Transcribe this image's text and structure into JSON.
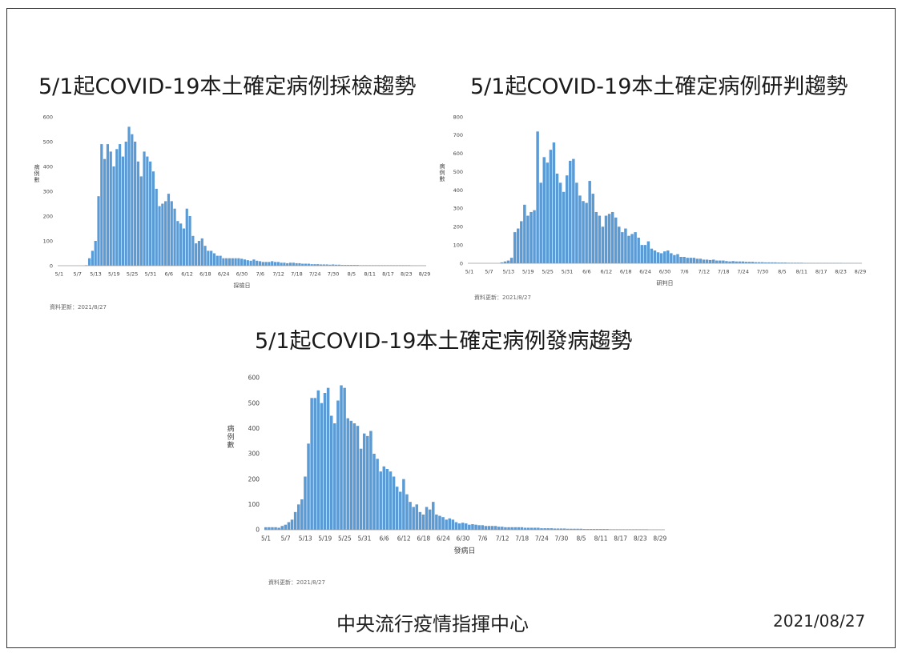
{
  "page": {
    "footer_center": "中央流行疫情指揮中心",
    "footer_date": "2021/08/27"
  },
  "colors": {
    "bar": "#5b9bd5",
    "axis": "#9a9a9a",
    "text": "#444444"
  },
  "chart_data": [
    {
      "type": "bar",
      "title": "5/1起COVID-19本土確定病例採檢趨勢",
      "xlabel": "採檢日",
      "ylabel": "病例數",
      "note": "資料更新：2021/8/27",
      "ylim": [
        0,
        600
      ],
      "yticks": [
        0,
        100,
        200,
        300,
        400,
        500,
        600
      ],
      "xtick_labels": [
        "5/1",
        "5/7",
        "5/13",
        "5/19",
        "5/25",
        "5/31",
        "6/6",
        "6/12",
        "6/18",
        "6/24",
        "6/30",
        "7/6",
        "7/12",
        "7/18",
        "7/24",
        "7/30",
        "8/5",
        "8/11",
        "8/17",
        "8/23",
        "8/29"
      ],
      "start_date": "5/1",
      "values": [
        0,
        0,
        0,
        0,
        0,
        0,
        0,
        0,
        0,
        2,
        30,
        60,
        100,
        280,
        490,
        430,
        490,
        460,
        400,
        470,
        490,
        440,
        500,
        560,
        530,
        500,
        420,
        360,
        460,
        440,
        420,
        380,
        310,
        240,
        250,
        260,
        290,
        260,
        230,
        180,
        170,
        150,
        230,
        200,
        120,
        90,
        100,
        110,
        80,
        60,
        60,
        50,
        40,
        40,
        30,
        30,
        30,
        30,
        30,
        30,
        28,
        25,
        22,
        20,
        25,
        20,
        18,
        15,
        15,
        15,
        18,
        15,
        15,
        12,
        12,
        10,
        12,
        12,
        10,
        10,
        8,
        8,
        8,
        6,
        6,
        6,
        5,
        5,
        5,
        4,
        5,
        4,
        4,
        3,
        3,
        3,
        3,
        3,
        3,
        2,
        2,
        2,
        2,
        2,
        2,
        2,
        2,
        2,
        2,
        2,
        2,
        2,
        2,
        2,
        2,
        2,
        1,
        1,
        1,
        1,
        1
      ]
    },
    {
      "type": "bar",
      "title": "5/1起COVID-19本土確定病例研判趨勢",
      "xlabel": "研判日",
      "ylabel": "病例數",
      "note": "資料更新：2021/8/27",
      "ylim": [
        0,
        800
      ],
      "yticks": [
        0,
        100,
        200,
        300,
        400,
        500,
        600,
        700,
        800
      ],
      "xtick_labels": [
        "5/1",
        "5/7",
        "5/13",
        "5/19",
        "5/25",
        "5/31",
        "6/6",
        "6/12",
        "6/18",
        "6/24",
        "6/30",
        "7/6",
        "7/12",
        "7/18",
        "7/24",
        "7/30",
        "8/5",
        "8/11",
        "8/17",
        "8/23",
        "8/29"
      ],
      "start_date": "5/1",
      "values": [
        0,
        0,
        0,
        0,
        0,
        0,
        0,
        0,
        0,
        0,
        5,
        10,
        15,
        30,
        170,
        190,
        230,
        320,
        260,
        280,
        290,
        720,
        440,
        580,
        550,
        620,
        660,
        490,
        440,
        390,
        480,
        560,
        570,
        440,
        370,
        340,
        330,
        450,
        380,
        280,
        260,
        200,
        260,
        270,
        280,
        250,
        200,
        170,
        190,
        150,
        160,
        170,
        140,
        100,
        100,
        120,
        80,
        70,
        60,
        55,
        65,
        70,
        55,
        45,
        50,
        35,
        35,
        30,
        30,
        30,
        25,
        25,
        20,
        20,
        18,
        20,
        15,
        15,
        15,
        12,
        10,
        12,
        10,
        10,
        10,
        8,
        8,
        8,
        6,
        6,
        6,
        5,
        5,
        5,
        5,
        4,
        4,
        4,
        3,
        3,
        3,
        3,
        3,
        2,
        2,
        2,
        2,
        2,
        2,
        2,
        2,
        2,
        2,
        2,
        2,
        1,
        1,
        1,
        1,
        1,
        1
      ]
    },
    {
      "type": "bar",
      "title": "5/1起COVID-19本土確定病例發病趨勢",
      "xlabel": "發病日",
      "ylabel": "病例數",
      "note": "資料更新：2021/8/27",
      "ylim": [
        0,
        600
      ],
      "yticks": [
        0,
        100,
        200,
        300,
        400,
        500,
        600
      ],
      "xtick_labels": [
        "5/1",
        "5/7",
        "5/13",
        "5/19",
        "5/25",
        "5/31",
        "6/6",
        "6/12",
        "6/18",
        "6/24",
        "6/30",
        "7/6",
        "7/12",
        "7/18",
        "7/24",
        "7/30",
        "8/5",
        "8/11",
        "8/17",
        "8/23",
        "8/29"
      ],
      "start_date": "5/1",
      "values": [
        10,
        10,
        10,
        10,
        8,
        15,
        20,
        30,
        40,
        70,
        100,
        120,
        210,
        340,
        520,
        520,
        550,
        500,
        540,
        560,
        450,
        420,
        510,
        570,
        560,
        440,
        430,
        420,
        410,
        320,
        380,
        370,
        390,
        300,
        280,
        230,
        250,
        240,
        230,
        210,
        170,
        150,
        200,
        140,
        110,
        90,
        100,
        70,
        60,
        90,
        80,
        110,
        60,
        55,
        50,
        40,
        45,
        40,
        30,
        25,
        28,
        25,
        20,
        22,
        20,
        18,
        18,
        15,
        15,
        15,
        15,
        12,
        12,
        10,
        10,
        10,
        10,
        10,
        10,
        8,
        8,
        8,
        8,
        8,
        6,
        6,
        6,
        6,
        5,
        5,
        5,
        5,
        4,
        4,
        4,
        4,
        4,
        3,
        3,
        3,
        3,
        3,
        3,
        3,
        3,
        2,
        2,
        2,
        2,
        2,
        2,
        2,
        2,
        2,
        2,
        2,
        2,
        1,
        1,
        1,
        1,
        1
      ]
    }
  ]
}
